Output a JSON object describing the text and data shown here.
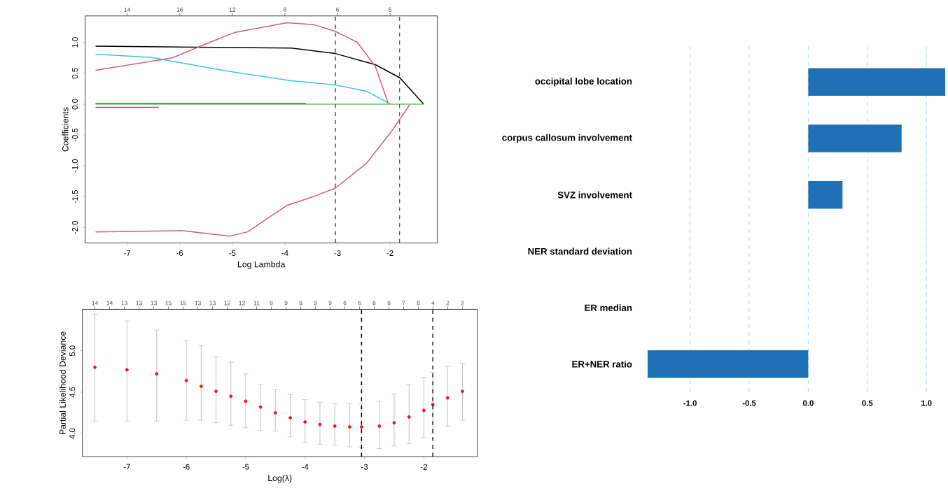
{
  "chart_data": [
    {
      "type": "line",
      "xlabel": "Log Lambda",
      "ylabel": "Coefficients",
      "xlim": [
        -7.8,
        -1.1
      ],
      "xticks": [
        -7,
        -6,
        -5,
        -4,
        -3,
        -2
      ],
      "annotations": [
        "14",
        "16",
        "12",
        "8",
        "6",
        "5"
      ],
      "ylim": [
        -2.25,
        1.43
      ],
      "yticks": [
        {
          "value": -2,
          "label": "-2.0"
        },
        {
          "value": -1.5,
          "label": "-1.5"
        },
        {
          "value": -1,
          "label": "-1.0"
        },
        {
          "value": -0.5,
          "label": "-0.5"
        },
        {
          "value": 0,
          "label": "0.0"
        },
        {
          "value": 0.5,
          "label": "0.5"
        },
        {
          "value": 1,
          "label": "1.0"
        }
      ],
      "ref_lines": [
        {
          "axis": "x",
          "value": -3.04,
          "color": "#555555",
          "line_style": "dashed"
        },
        {
          "axis": "x",
          "value": -1.82,
          "color": "#555555",
          "line_style": "dashed"
        }
      ],
      "series": [
        {
          "color": "#000000",
          "x": [
            -7.6,
            -3.88,
            -3.04,
            -2.28,
            -1.82,
            -1.36
          ],
          "values": [
            0.94,
            0.91,
            0.82,
            0.64,
            0.43,
            0
          ]
        },
        {
          "color": "#3cc8d8",
          "x": [
            -7.6,
            -6.56,
            -5.13,
            -3.88,
            -3.04,
            -2.45,
            -1.99
          ],
          "values": [
            0.81,
            0.76,
            0.54,
            0.38,
            0.31,
            0.21,
            0
          ]
        },
        {
          "color": "#d0607a",
          "x": [
            -7.6,
            -6.14,
            -5.55,
            -4.96,
            -4.46,
            -3.96,
            -3.46,
            -3.04,
            -2.62,
            -2.28,
            -2.03
          ],
          "values": [
            0.55,
            0.75,
            0.96,
            1.16,
            1.24,
            1.32,
            1.29,
            1.18,
            1.0,
            0.61,
            0
          ]
        },
        {
          "color": "#d0607a",
          "x": [
            -7.6,
            -5.97,
            -5.05,
            -4.71,
            -3.96,
            -3.46,
            -3.04,
            -2.45,
            -1.99,
            -1.82,
            -1.62
          ],
          "values": [
            -2.07,
            -2.05,
            -2.14,
            -2.07,
            -1.64,
            -1.5,
            -1.36,
            -0.96,
            -0.46,
            -0.25,
            0
          ]
        },
        {
          "color": "#206020",
          "x": [
            -7.6,
            -3.6
          ],
          "values": [
            0.01,
            0.01
          ]
        },
        {
          "color": "#a040a0",
          "x": [
            -7.6,
            -6.4
          ],
          "values": [
            -0.05,
            -0.05
          ]
        },
        {
          "color": "#70c070",
          "x": [
            -7.6,
            -1.36
          ],
          "values": [
            0,
            0
          ]
        }
      ]
    },
    {
      "type": "scatter",
      "xlabel": "Log(λ)",
      "ylabel": "Partial Likelihood Deviance",
      "marker": "circle",
      "xlim": [
        -7.75,
        -1.1
      ],
      "xticks": [
        -7,
        -6,
        -5,
        -4,
        -3,
        -2
      ],
      "annotations": [
        "14",
        "14",
        "13",
        "13",
        "13",
        "15",
        "15",
        "13",
        "13",
        "12",
        "12",
        "11",
        "9",
        "9",
        "9",
        "9",
        "9",
        "6",
        "6",
        "6",
        "6",
        "7",
        "8",
        "4",
        "2",
        "2"
      ],
      "ylim": [
        3.72,
        5.5
      ],
      "yticks": [
        {
          "value": 4,
          "label": "4.0"
        },
        {
          "value": 4.5,
          "label": "4.5"
        },
        {
          "value": 5,
          "label": "5.0"
        }
      ],
      "ref_lines": [
        {
          "axis": "x",
          "value": -3.05,
          "color": "#000000",
          "line_style": "dashed"
        },
        {
          "axis": "x",
          "value": -1.85,
          "color": "#000000",
          "line_style": "dashed"
        }
      ],
      "series": [
        {
          "color": "#e02020",
          "x": [
            -7.54,
            -7.0,
            -6.5,
            -6.0,
            -5.75,
            -5.5,
            -5.25,
            -5.0,
            -4.75,
            -4.5,
            -4.25,
            -4.0,
            -3.75,
            -3.5,
            -3.25,
            -3.05,
            -2.75,
            -2.5,
            -2.25,
            -2.0,
            -1.85,
            -1.6,
            -1.35
          ],
          "values": [
            4.8,
            4.77,
            4.72,
            4.64,
            4.57,
            4.51,
            4.45,
            4.39,
            4.32,
            4.25,
            4.19,
            4.14,
            4.11,
            4.09,
            4.08,
            4.08,
            4.09,
            4.13,
            4.2,
            4.28,
            4.35,
            4.43,
            4.51
          ],
          "errors": [
            [
              4.15,
              5.44
            ],
            [
              4.15,
              5.36
            ],
            [
              4.15,
              5.25
            ],
            [
              4.16,
              5.12
            ],
            [
              4.16,
              5.06
            ],
            [
              4.13,
              4.93
            ],
            [
              4.1,
              4.86
            ],
            [
              4.07,
              4.72
            ],
            [
              4.04,
              4.59
            ],
            [
              4.03,
              4.53
            ],
            [
              3.96,
              4.47
            ],
            [
              3.89,
              4.41
            ],
            [
              3.87,
              4.38
            ],
            [
              3.86,
              4.36
            ],
            [
              3.84,
              4.36
            ],
            [
              3.83,
              4.36
            ],
            [
              3.82,
              4.39
            ],
            [
              3.85,
              4.48
            ],
            [
              3.88,
              4.59
            ],
            [
              3.95,
              4.68
            ],
            [
              4.0,
              4.74
            ],
            [
              4.09,
              4.81
            ],
            [
              4.16,
              4.85
            ]
          ]
        }
      ]
    },
    {
      "type": "bar",
      "orientation": "horizontal",
      "grid": "x",
      "color": "#1f70b4",
      "categories": [
        "occipital lobe location",
        "corpus callosum involvement",
        "SVZ involvement",
        "NER standard deviation",
        "ER median",
        "ER+NER ratio"
      ],
      "values": [
        1.16,
        0.79,
        0.29,
        0,
        0,
        -1.36
      ],
      "xlim": [
        -1.36,
        1.16
      ],
      "xticks": [
        {
          "value": -1,
          "label": "-1.0"
        },
        {
          "value": -0.5,
          "label": "-0.5"
        },
        {
          "value": 0,
          "label": "0.0"
        },
        {
          "value": 0.5,
          "label": "0.5"
        },
        {
          "value": 1,
          "label": "1.0"
        }
      ]
    }
  ]
}
